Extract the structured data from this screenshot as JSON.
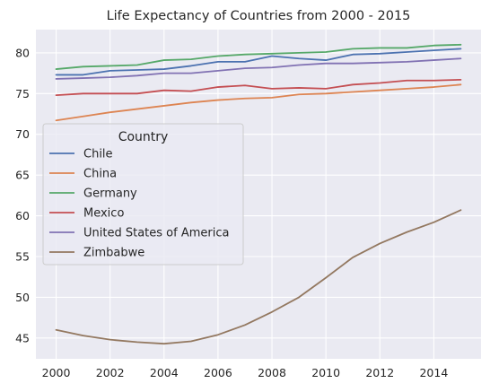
{
  "chart_data": {
    "type": "line",
    "title": "Life Expectancy of Countries from 2000 - 2015",
    "xlabel": "",
    "ylabel": "",
    "x": [
      2000,
      2001,
      2002,
      2003,
      2004,
      2005,
      2006,
      2007,
      2008,
      2009,
      2010,
      2011,
      2012,
      2013,
      2014,
      2015
    ],
    "xlim": [
      1999.25,
      2015.75
    ],
    "ylim": [
      42.45,
      82.85
    ],
    "xticks": [
      2000,
      2002,
      2004,
      2006,
      2008,
      2010,
      2012,
      2014
    ],
    "yticks": [
      45,
      50,
      55,
      60,
      65,
      70,
      75,
      80
    ],
    "grid": true,
    "legend": {
      "title": "Country",
      "placement": "center-left"
    },
    "series": [
      {
        "name": "Chile",
        "color": "#4c72b0",
        "values": [
          77.3,
          77.3,
          77.8,
          77.9,
          78.0,
          78.4,
          78.9,
          78.9,
          79.6,
          79.3,
          79.1,
          79.8,
          79.9,
          80.1,
          80.3,
          80.5
        ]
      },
      {
        "name": "China",
        "color": "#dd8452",
        "values": [
          71.7,
          72.2,
          72.7,
          73.1,
          73.5,
          73.9,
          74.2,
          74.4,
          74.5,
          74.9,
          75.0,
          75.2,
          75.4,
          75.6,
          75.8,
          76.1
        ]
      },
      {
        "name": "Germany",
        "color": "#55a868",
        "values": [
          78.0,
          78.3,
          78.4,
          78.5,
          79.1,
          79.2,
          79.6,
          79.8,
          79.9,
          80.0,
          80.1,
          80.5,
          80.6,
          80.6,
          80.9,
          81.0
        ]
      },
      {
        "name": "Mexico",
        "color": "#c44e52",
        "values": [
          74.8,
          75.0,
          75.0,
          75.0,
          75.4,
          75.3,
          75.8,
          76.0,
          75.6,
          75.7,
          75.6,
          76.1,
          76.3,
          76.6,
          76.6,
          76.7
        ]
      },
      {
        "name": "United States of America",
        "color": "#8172b3",
        "values": [
          76.8,
          76.9,
          77.0,
          77.2,
          77.5,
          77.5,
          77.8,
          78.1,
          78.2,
          78.5,
          78.7,
          78.7,
          78.8,
          78.9,
          79.1,
          79.3
        ]
      },
      {
        "name": "Zimbabwe",
        "color": "#937860",
        "values": [
          46.0,
          45.3,
          44.8,
          44.5,
          44.3,
          44.6,
          45.4,
          46.6,
          48.2,
          50.0,
          52.4,
          54.9,
          56.6,
          58.0,
          59.2,
          60.7
        ]
      }
    ]
  }
}
